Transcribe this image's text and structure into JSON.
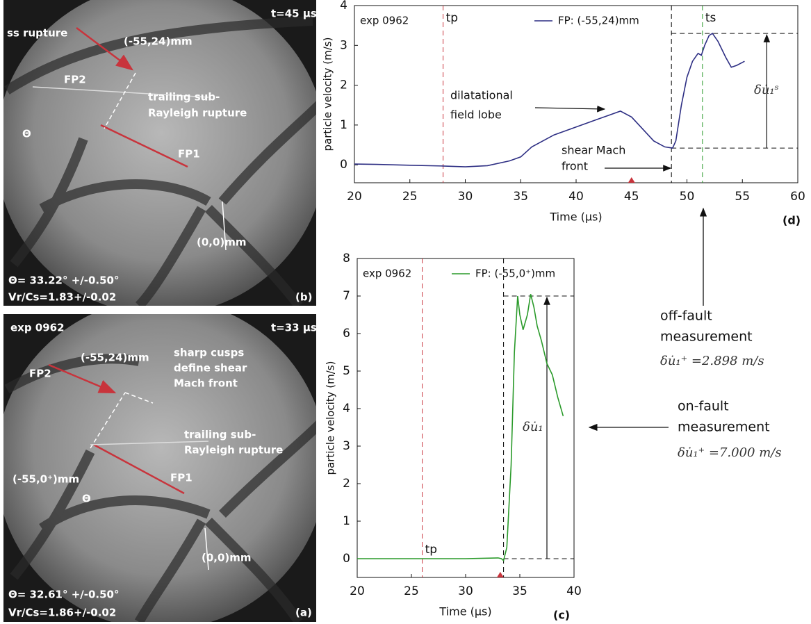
{
  "panels": [
    {
      "id_label": "(b)",
      "time": "t=45 µs",
      "labels": [
        "ss rupture",
        "FP2",
        "(-55,24)mm",
        "trailing sub-",
        "Rayleigh rupture",
        "Θ",
        "FP1",
        "(0,0)mm"
      ],
      "stats": [
        "Θ= 33.22° +/-0.50°",
        "Vr/Cs=1.83+/-0.02"
      ]
    },
    {
      "id_label": "(a)",
      "exp": "exp 0962",
      "time": "t=33 µs",
      "labels": [
        "FP2",
        "(-55,24)mm",
        "sharp cusps",
        "define shear",
        "Mach front",
        "trailing sub-",
        "Rayleigh rupture",
        "(-55,0⁺)mm",
        "FP1",
        "Θ",
        "(0,0)mm"
      ],
      "stats": [
        "Θ= 32.61° +/-0.50°",
        "Vr/Cs=1.86+/-0.02"
      ]
    }
  ],
  "chart_data": [
    {
      "type": "line",
      "panel_label": "(d)",
      "exp": "exp 0962",
      "xlabel": "Time (µs)",
      "ylabel": "particle velocity (m/s)",
      "xlim": [
        20,
        60
      ],
      "ylim": [
        -0.45,
        4
      ],
      "xticks": [
        20,
        25,
        30,
        35,
        40,
        45,
        50,
        55,
        60
      ],
      "yticks": [
        0,
        1,
        2,
        3,
        4
      ],
      "series": [
        {
          "name": "FP: (-55,24)mm",
          "color": "#2d2e83",
          "x": [
            20,
            22,
            25,
            28,
            30,
            32,
            34,
            35,
            36,
            38,
            40,
            42,
            43,
            44,
            45,
            46,
            47,
            48,
            48.7,
            49,
            49.5,
            50,
            50.5,
            51,
            51.3,
            51.6,
            52,
            52.3,
            52.8,
            53.5,
            54,
            54.5,
            55.2
          ],
          "values": [
            0.02,
            0.01,
            -0.01,
            -0.03,
            -0.05,
            -0.02,
            0.1,
            0.2,
            0.45,
            0.75,
            0.95,
            1.15,
            1.25,
            1.35,
            1.2,
            0.9,
            0.6,
            0.45,
            0.42,
            0.6,
            1.5,
            2.2,
            2.6,
            2.8,
            2.75,
            3.0,
            3.25,
            3.3,
            3.1,
            2.7,
            2.45,
            2.5,
            2.6
          ]
        }
      ],
      "vlines": [
        {
          "x": 28,
          "label": "tp",
          "color": "#c8343c"
        },
        {
          "x": 48.6,
          "color": "#000000"
        },
        {
          "x": 51.4,
          "label": "ts",
          "color": "#2a9a2a"
        }
      ],
      "hlines": [
        3.3,
        0.42
      ],
      "annotations": [
        "dilatational",
        "field lobe",
        "shear Mach",
        "front",
        "δu̇₁ˢ"
      ],
      "event_x": 45
    },
    {
      "type": "line",
      "panel_label": "(c)",
      "exp": "exp 0962",
      "xlabel": "Time (µs)",
      "ylabel": "particle velocity (m/s)",
      "xlim": [
        20,
        40
      ],
      "ylim": [
        -0.5,
        8
      ],
      "xticks": [
        20,
        25,
        30,
        35,
        40
      ],
      "yticks": [
        0,
        1,
        2,
        3,
        4,
        5,
        6,
        7,
        8
      ],
      "series": [
        {
          "name": "FP: (-55,0⁺)mm",
          "color": "#2a9a2a",
          "x": [
            20,
            30,
            33,
            33.3,
            33.5,
            33.8,
            34.2,
            34.5,
            34.8,
            35,
            35.3,
            35.7,
            36,
            36.3,
            36.6,
            37,
            37.5,
            38,
            38.5,
            39
          ],
          "values": [
            0,
            0,
            0.02,
            0,
            -0.05,
            0.3,
            2.5,
            5.5,
            7.0,
            6.5,
            6.1,
            6.5,
            7.05,
            6.7,
            6.2,
            5.8,
            5.2,
            4.9,
            4.3,
            3.8
          ]
        }
      ],
      "vlines": [
        {
          "x": 26,
          "label": "tp",
          "color": "#c8343c"
        },
        {
          "x": 33.5,
          "color": "#000000"
        }
      ],
      "hlines": [
        7,
        0
      ],
      "annotations": [
        "δu̇₁"
      ],
      "event_x": 33.2
    }
  ],
  "side_notes": [
    "off-fault",
    "measurement",
    "δu̇₁⁺ =2.898 m/s",
    "on-fault",
    "measurement",
    "δu̇₁⁺ =7.000 m/s"
  ]
}
